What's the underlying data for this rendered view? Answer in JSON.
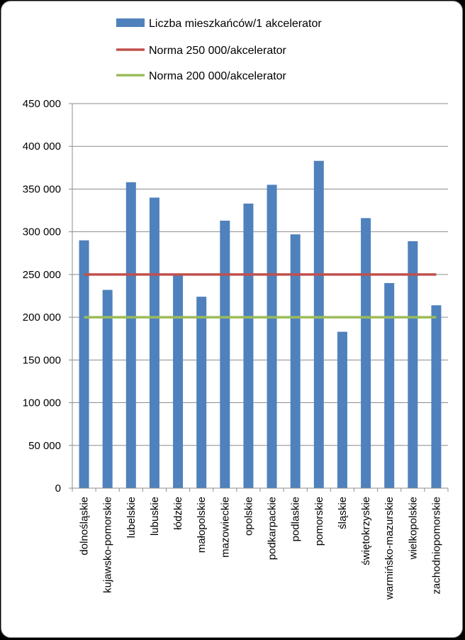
{
  "chart_data": {
    "type": "bar",
    "categories": [
      "dolnośląskie",
      "kujawsko-pomorskie",
      "lubelskie",
      "lubuskie",
      "łódzkie",
      "małopolskie",
      "mazowieckie",
      "opolskie",
      "podkarpackie",
      "podlaskie",
      "pomorskie",
      "śląskie",
      "świętokrzyskie",
      "warmińsko-mazurskie",
      "wielkopolskie",
      "zachodniopomorskie"
    ],
    "series": [
      {
        "name": "Liczba mieszkańców/1 akcelerator",
        "type": "bar",
        "color": "#4f81bd",
        "values": [
          290000,
          232000,
          358000,
          340000,
          249000,
          224000,
          313000,
          333000,
          355000,
          297000,
          383000,
          183000,
          316000,
          240000,
          289000,
          214000
        ]
      },
      {
        "name": "Norma 250 000/akcelerator",
        "type": "line",
        "color": "#c0504d",
        "value": 250000
      },
      {
        "name": "Norma 200 000/akcelerator",
        "type": "line",
        "color": "#9bbb59",
        "value": 200000
      }
    ],
    "ylim": [
      0,
      450000
    ],
    "yticks": [
      "0",
      "50 000",
      "100 000",
      "150 000",
      "200 000",
      "250 000",
      "300 000",
      "350 000",
      "400 000",
      "450 000"
    ],
    "ytick_values": [
      0,
      50000,
      100000,
      150000,
      200000,
      250000,
      300000,
      350000,
      400000,
      450000
    ],
    "grid": true,
    "legend_position": "top"
  }
}
